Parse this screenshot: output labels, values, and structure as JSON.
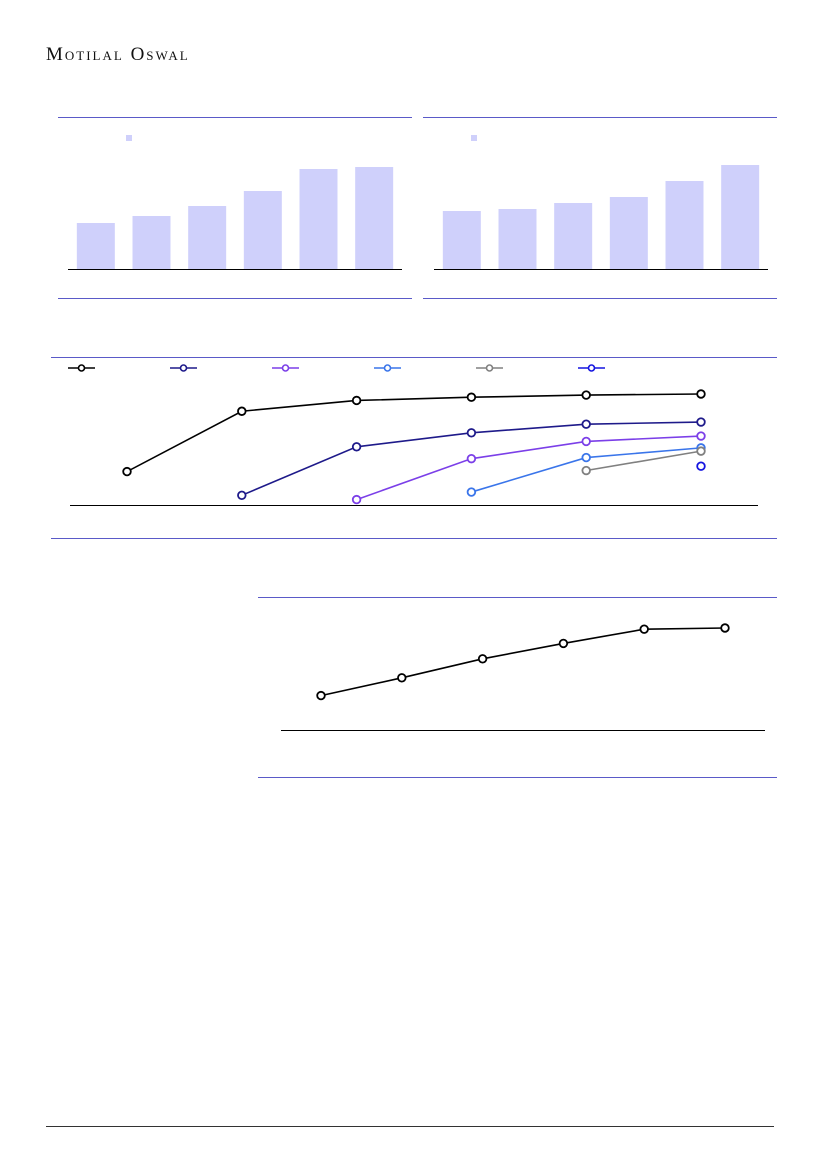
{
  "header": {
    "brand": "Motilal Oswal"
  },
  "colors": {
    "accent_rule": "#5a5ac8",
    "bar_fill": "#cfd0fb",
    "axis": "#000000"
  },
  "chart_data": [
    {
      "type": "bar",
      "categories": [
        "",
        "",
        "",
        "",
        "",
        ""
      ],
      "values": [
        46,
        53,
        63,
        78,
        100,
        102
      ],
      "ylim": [
        0,
        110
      ],
      "legend": {
        "placement": "top-left",
        "color": "#cfd0fb"
      }
    },
    {
      "type": "bar",
      "categories": [
        "",
        "",
        "",
        "",
        "",
        ""
      ],
      "values": [
        58,
        60,
        66,
        72,
        88,
        104
      ],
      "ylim": [
        0,
        110
      ],
      "legend": {
        "placement": "top-left",
        "color": "#cfd0fb"
      }
    },
    {
      "type": "line",
      "x": [
        1,
        2,
        3,
        4,
        5,
        6
      ],
      "ylim": [
        0,
        110
      ],
      "legend": {
        "placement": "top"
      },
      "series": [
        {
          "color": "#000000",
          "values": [
            31,
            87,
            97,
            100,
            102,
            103
          ]
        },
        {
          "color": "#1e1a8a",
          "values": [
            null,
            9,
            54,
            67,
            75,
            77
          ]
        },
        {
          "color": "#7b3fe8",
          "values": [
            null,
            null,
            5,
            43,
            59,
            64
          ]
        },
        {
          "color": "#3a75ea",
          "values": [
            null,
            null,
            null,
            12,
            44,
            53
          ]
        },
        {
          "color": "#808080",
          "values": [
            null,
            null,
            null,
            null,
            32,
            50
          ]
        },
        {
          "color": "#1414e0",
          "values": [
            null,
            null,
            null,
            null,
            null,
            36
          ]
        }
      ]
    },
    {
      "type": "line",
      "x": [
        1,
        2,
        3,
        4,
        5,
        6
      ],
      "ylim": [
        0,
        110
      ],
      "series": [
        {
          "color": "#000000",
          "values": [
            29,
            44,
            60,
            73,
            85,
            86
          ]
        }
      ]
    }
  ]
}
